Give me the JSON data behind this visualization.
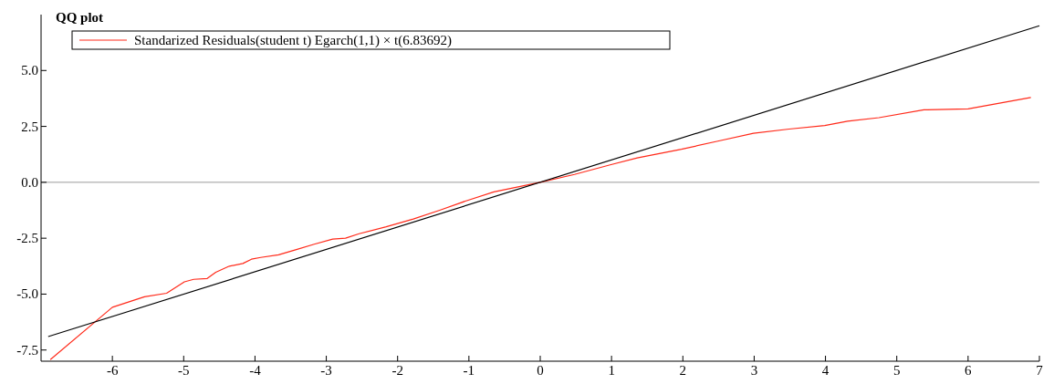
{
  "chart_data": {
    "type": "line",
    "title": "QQ plot",
    "xlim": [
      -7,
      7
    ],
    "xticks": [
      -6,
      -5,
      -4,
      -3,
      -2,
      -1,
      0,
      1,
      2,
      3,
      4,
      5,
      6,
      7
    ],
    "ylim": [
      -8,
      7.5
    ],
    "yticks": [
      {
        "value": -7.5,
        "label": "-7.5"
      },
      {
        "value": -5,
        "label": "-5.0"
      },
      {
        "value": -2.5,
        "label": "-2.5"
      },
      {
        "value": 0,
        "label": "0.0"
      },
      {
        "value": 2.5,
        "label": "2.5"
      },
      {
        "value": 5,
        "label": "5.0"
      }
    ],
    "grid": false,
    "legend": "top left",
    "ref_lines": [
      {
        "axis": "y",
        "value": 0,
        "color": "#808080"
      }
    ],
    "series": [
      {
        "name": "Standarized Residuals(student t) Egarch(1,1) × t(6.83692)",
        "color": "#ff2a1a",
        "x": [
          -6.87,
          -6.0,
          -5.55,
          -5.24,
          -4.99,
          -4.86,
          -4.67,
          -4.55,
          -4.36,
          -4.17,
          -4.05,
          -3.92,
          -3.67,
          -3.42,
          -3.17,
          -2.91,
          -2.73,
          -2.54,
          -2.16,
          -1.78,
          -1.41,
          -1.03,
          -0.65,
          0,
          0.48,
          0.98,
          1.36,
          1.98,
          2.49,
          2.99,
          3.49,
          3.99,
          4.31,
          4.75,
          5.38,
          6.0,
          6.88
        ],
        "values": [
          -7.93,
          -5.59,
          -5.12,
          -4.96,
          -4.45,
          -4.34,
          -4.3,
          -4.02,
          -3.75,
          -3.63,
          -3.44,
          -3.36,
          -3.24,
          -3.01,
          -2.77,
          -2.54,
          -2.5,
          -2.3,
          -1.99,
          -1.64,
          -1.25,
          -0.82,
          -0.43,
          0,
          0.35,
          0.78,
          1.09,
          1.48,
          1.84,
          2.19,
          2.38,
          2.54,
          2.73,
          2.89,
          3.24,
          3.28,
          3.79
        ]
      },
      {
        "color": "#000000",
        "x": [
          -6.9,
          7
        ],
        "values": [
          -6.9,
          7
        ]
      }
    ]
  }
}
